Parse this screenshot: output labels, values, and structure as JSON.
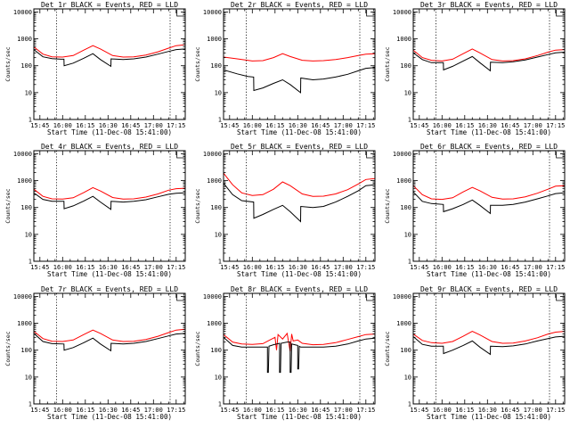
{
  "figure": {
    "x_tick_labels": [
      "15:45",
      "16:00",
      "16:15",
      "16:30",
      "16:45",
      "17:00",
      "17:15"
    ],
    "x_tick_values_min": [
      0,
      15,
      30,
      45,
      60,
      75,
      90
    ],
    "y_tick_labels": [
      "1",
      "10",
      "100",
      "1000",
      "10000"
    ],
    "y_tick_values": [
      1,
      10,
      100,
      1000,
      10000
    ],
    "xlabel": "Start Time (11-Dec-08 15:41:00)",
    "ylabel": "Counts/sec",
    "xlim_min": [
      -4,
      96
    ],
    "ylim": [
      1,
      13000
    ],
    "yscale": "log",
    "dotted_markers_min": [
      11,
      86
    ],
    "colors": {
      "events": "#000000",
      "lld": "#ff0000"
    }
  },
  "chart_data": [
    {
      "type": "line",
      "title": "Det 1r BLACK = Events, RED = LLD",
      "xlabel": "Start Time (11-Dec-08 15:41:00)",
      "ylabel": "Counts/sec",
      "series": [
        {
          "name": "LLD",
          "color": "#ff0000",
          "x": [
            -4,
            2,
            8,
            15,
            22,
            29,
            35,
            40,
            48,
            55,
            62,
            70,
            78,
            85,
            90,
            96
          ],
          "y": [
            500,
            270,
            215,
            210,
            240,
            380,
            560,
            420,
            240,
            210,
            215,
            250,
            330,
            450,
            560,
            600
          ]
        },
        {
          "name": "Events",
          "color": "#000000",
          "x": [
            -4,
            2,
            8,
            14,
            15.9,
            16,
            22,
            29,
            35,
            40,
            46.9,
            47,
            55,
            62,
            70,
            78,
            85,
            90,
            96
          ],
          "y": [
            400,
            215,
            185,
            175,
            175,
            100,
            125,
            190,
            280,
            170,
            95,
            180,
            170,
            180,
            210,
            270,
            340,
            400,
            420
          ]
        }
      ]
    },
    {
      "type": "line",
      "title": "Det 2r BLACK = Events, RED = LLD",
      "xlabel": "Start Time (11-Dec-08 15:41:00)",
      "ylabel": "Counts/sec",
      "series": [
        {
          "name": "LLD",
          "color": "#ff0000",
          "x": [
            -4,
            5,
            15,
            22,
            29,
            35,
            40,
            48,
            55,
            62,
            70,
            78,
            85,
            90,
            96
          ],
          "y": [
            210,
            180,
            150,
            155,
            200,
            280,
            220,
            160,
            150,
            155,
            170,
            200,
            240,
            270,
            280
          ]
        },
        {
          "name": "Events",
          "color": "#000000",
          "x": [
            -4,
            5,
            12,
            15.9,
            16,
            22,
            29,
            35,
            40,
            46.9,
            47,
            55,
            62,
            70,
            78,
            85,
            90,
            96
          ],
          "y": [
            70,
            50,
            40,
            38,
            12,
            15,
            22,
            30,
            20,
            10,
            35,
            30,
            32,
            38,
            48,
            65,
            80,
            85
          ]
        }
      ]
    },
    {
      "type": "line",
      "title": "Det 3r BLACK = Events, RED = LLD",
      "xlabel": "Start Time (11-Dec-08 15:41:00)",
      "ylabel": "Counts/sec",
      "series": [
        {
          "name": "LLD",
          "color": "#ff0000",
          "x": [
            -4,
            2,
            8,
            15,
            22,
            29,
            35,
            40,
            48,
            55,
            62,
            70,
            78,
            85,
            90,
            96
          ],
          "y": [
            380,
            200,
            160,
            150,
            175,
            280,
            420,
            300,
            170,
            150,
            155,
            180,
            240,
            320,
            380,
            400
          ]
        },
        {
          "name": "Events",
          "color": "#000000",
          "x": [
            -4,
            2,
            8,
            15.9,
            16,
            22,
            29,
            35,
            40,
            46.9,
            47,
            55,
            62,
            70,
            78,
            85,
            90,
            96
          ],
          "y": [
            300,
            170,
            130,
            130,
            70,
            95,
            150,
            220,
            130,
            65,
            135,
            130,
            140,
            165,
            210,
            260,
            300,
            320
          ]
        }
      ]
    },
    {
      "type": "line",
      "title": "Det 4r BLACK = Events, RED = LLD",
      "xlabel": "Start Time (11-Dec-08 15:41:00)",
      "ylabel": "Counts/sec",
      "series": [
        {
          "name": "LLD",
          "color": "#ff0000",
          "x": [
            -4,
            2,
            8,
            15,
            22,
            29,
            35,
            40,
            48,
            55,
            62,
            70,
            78,
            85,
            90,
            96
          ],
          "y": [
            480,
            260,
            210,
            205,
            230,
            360,
            550,
            410,
            235,
            205,
            210,
            245,
            320,
            440,
            500,
            520
          ]
        },
        {
          "name": "Events",
          "color": "#000000",
          "x": [
            -4,
            2,
            8,
            15.9,
            16,
            22,
            29,
            35,
            40,
            46.9,
            47,
            55,
            62,
            70,
            78,
            85,
            90,
            96
          ],
          "y": [
            350,
            200,
            170,
            170,
            90,
            115,
            175,
            260,
            160,
            85,
            170,
            160,
            170,
            195,
            250,
            310,
            340,
            350
          ]
        }
      ]
    },
    {
      "type": "line",
      "title": "Det 5r BLACK = Events, RED = LLD",
      "xlabel": "Start Time (11-Dec-08 15:41:00)",
      "ylabel": "Counts/sec",
      "series": [
        {
          "name": "LLD",
          "color": "#ff0000",
          "x": [
            -4,
            2,
            8,
            15,
            22,
            29,
            35,
            40,
            48,
            55,
            62,
            70,
            78,
            85,
            90,
            96
          ],
          "y": [
            1900,
            700,
            350,
            280,
            300,
            480,
            900,
            650,
            320,
            260,
            265,
            320,
            460,
            750,
            1100,
            1200
          ]
        },
        {
          "name": "Events",
          "color": "#000000",
          "x": [
            -4,
            2,
            8,
            15.9,
            16,
            22,
            29,
            35,
            40,
            46.9,
            47,
            55,
            62,
            70,
            78,
            85,
            90,
            96
          ],
          "y": [
            800,
            300,
            180,
            160,
            40,
            55,
            85,
            120,
            70,
            30,
            110,
            100,
            110,
            160,
            260,
            420,
            650,
            700
          ]
        }
      ]
    },
    {
      "type": "line",
      "title": "Det 6r BLACK = Events, RED = LLD",
      "xlabel": "Start Time (11-Dec-08 15:41:00)",
      "ylabel": "Counts/sec",
      "series": [
        {
          "name": "LLD",
          "color": "#ff0000",
          "x": [
            -4,
            2,
            8,
            15,
            22,
            29,
            35,
            40,
            48,
            55,
            62,
            70,
            78,
            85,
            90,
            96
          ],
          "y": [
            650,
            300,
            210,
            200,
            230,
            380,
            560,
            420,
            240,
            205,
            210,
            250,
            340,
            480,
            620,
            650
          ]
        },
        {
          "name": "Events",
          "color": "#000000",
          "x": [
            -4,
            2,
            8,
            15.9,
            16,
            22,
            29,
            35,
            40,
            46.9,
            47,
            55,
            62,
            70,
            78,
            85,
            90,
            96
          ],
          "y": [
            380,
            170,
            140,
            130,
            70,
            90,
            130,
            190,
            120,
            60,
            120,
            120,
            130,
            160,
            210,
            270,
            330,
            350
          ]
        }
      ]
    },
    {
      "type": "line",
      "title": "Det 7r BLACK = Events, RED = LLD",
      "xlabel": "Start Time (11-Dec-08 15:41:00)",
      "ylabel": "Counts/sec",
      "series": [
        {
          "name": "LLD",
          "color": "#ff0000",
          "x": [
            -4,
            2,
            8,
            15,
            22,
            29,
            35,
            40,
            48,
            55,
            62,
            70,
            78,
            85,
            90,
            96
          ],
          "y": [
            500,
            270,
            215,
            210,
            240,
            380,
            560,
            420,
            240,
            210,
            215,
            250,
            330,
            450,
            560,
            600
          ]
        },
        {
          "name": "Events",
          "color": "#000000",
          "x": [
            -4,
            2,
            8,
            15.9,
            16,
            22,
            29,
            35,
            40,
            46.9,
            47,
            55,
            62,
            70,
            78,
            85,
            90,
            96
          ],
          "y": [
            420,
            210,
            175,
            170,
            100,
            125,
            190,
            280,
            170,
            95,
            180,
            170,
            180,
            210,
            270,
            340,
            400,
            420
          ]
        }
      ]
    },
    {
      "type": "line",
      "title": "Det 8r BLACK = Events, RED = LLD",
      "xlabel": "Start Time (11-Dec-08 15:41:00)",
      "ylabel": "Counts/sec",
      "series": [
        {
          "name": "LLD",
          "color": "#ff0000",
          "x": [
            -4,
            2,
            8,
            15,
            22,
            26,
            30,
            31,
            32,
            35,
            38,
            40,
            41,
            42,
            45,
            48,
            55,
            62,
            70,
            78,
            85,
            90,
            96
          ],
          "y": [
            380,
            200,
            170,
            165,
            175,
            230,
            300,
            100,
            380,
            260,
            420,
            90,
            400,
            220,
            240,
            180,
            160,
            165,
            190,
            250,
            320,
            380,
            400
          ]
        },
        {
          "name": "Events",
          "color": "#000000",
          "x": [
            -4,
            2,
            8,
            15.9,
            16,
            20,
            25,
            25.01,
            25.6,
            26,
            29,
            33,
            33.01,
            33.6,
            34,
            38,
            40,
            40.01,
            40.6,
            41,
            43,
            45,
            45.01,
            45.6,
            46,
            47,
            55,
            62,
            70,
            78,
            85,
            90,
            96
          ],
          "y": [
            300,
            150,
            130,
            130,
            130,
            130,
            130,
            15,
            15,
            140,
            160,
            180,
            15,
            15,
            180,
            200,
            200,
            15,
            15,
            170,
            160,
            150,
            20,
            20,
            140,
            130,
            130,
            130,
            140,
            170,
            220,
            260,
            280
          ]
        }
      ]
    },
    {
      "type": "line",
      "title": "Det 9r BLACK = Events, RED = LLD",
      "xlabel": "Start Time (11-Dec-08 15:41:00)",
      "ylabel": "Counts/sec",
      "series": [
        {
          "name": "LLD",
          "color": "#ff0000",
          "x": [
            -4,
            2,
            8,
            15,
            22,
            29,
            35,
            40,
            48,
            55,
            62,
            70,
            78,
            85,
            90,
            96
          ],
          "y": [
            400,
            230,
            190,
            180,
            210,
            330,
            500,
            370,
            210,
            180,
            185,
            220,
            290,
            400,
            470,
            500
          ]
        },
        {
          "name": "Events",
          "color": "#000000",
          "x": [
            -4,
            2,
            8,
            15.9,
            16,
            22,
            29,
            35,
            40,
            46.9,
            47,
            55,
            62,
            70,
            78,
            85,
            90,
            96
          ],
          "y": [
            320,
            165,
            140,
            140,
            75,
            100,
            150,
            220,
            130,
            70,
            140,
            135,
            145,
            170,
            220,
            270,
            310,
            330
          ]
        }
      ]
    }
  ]
}
